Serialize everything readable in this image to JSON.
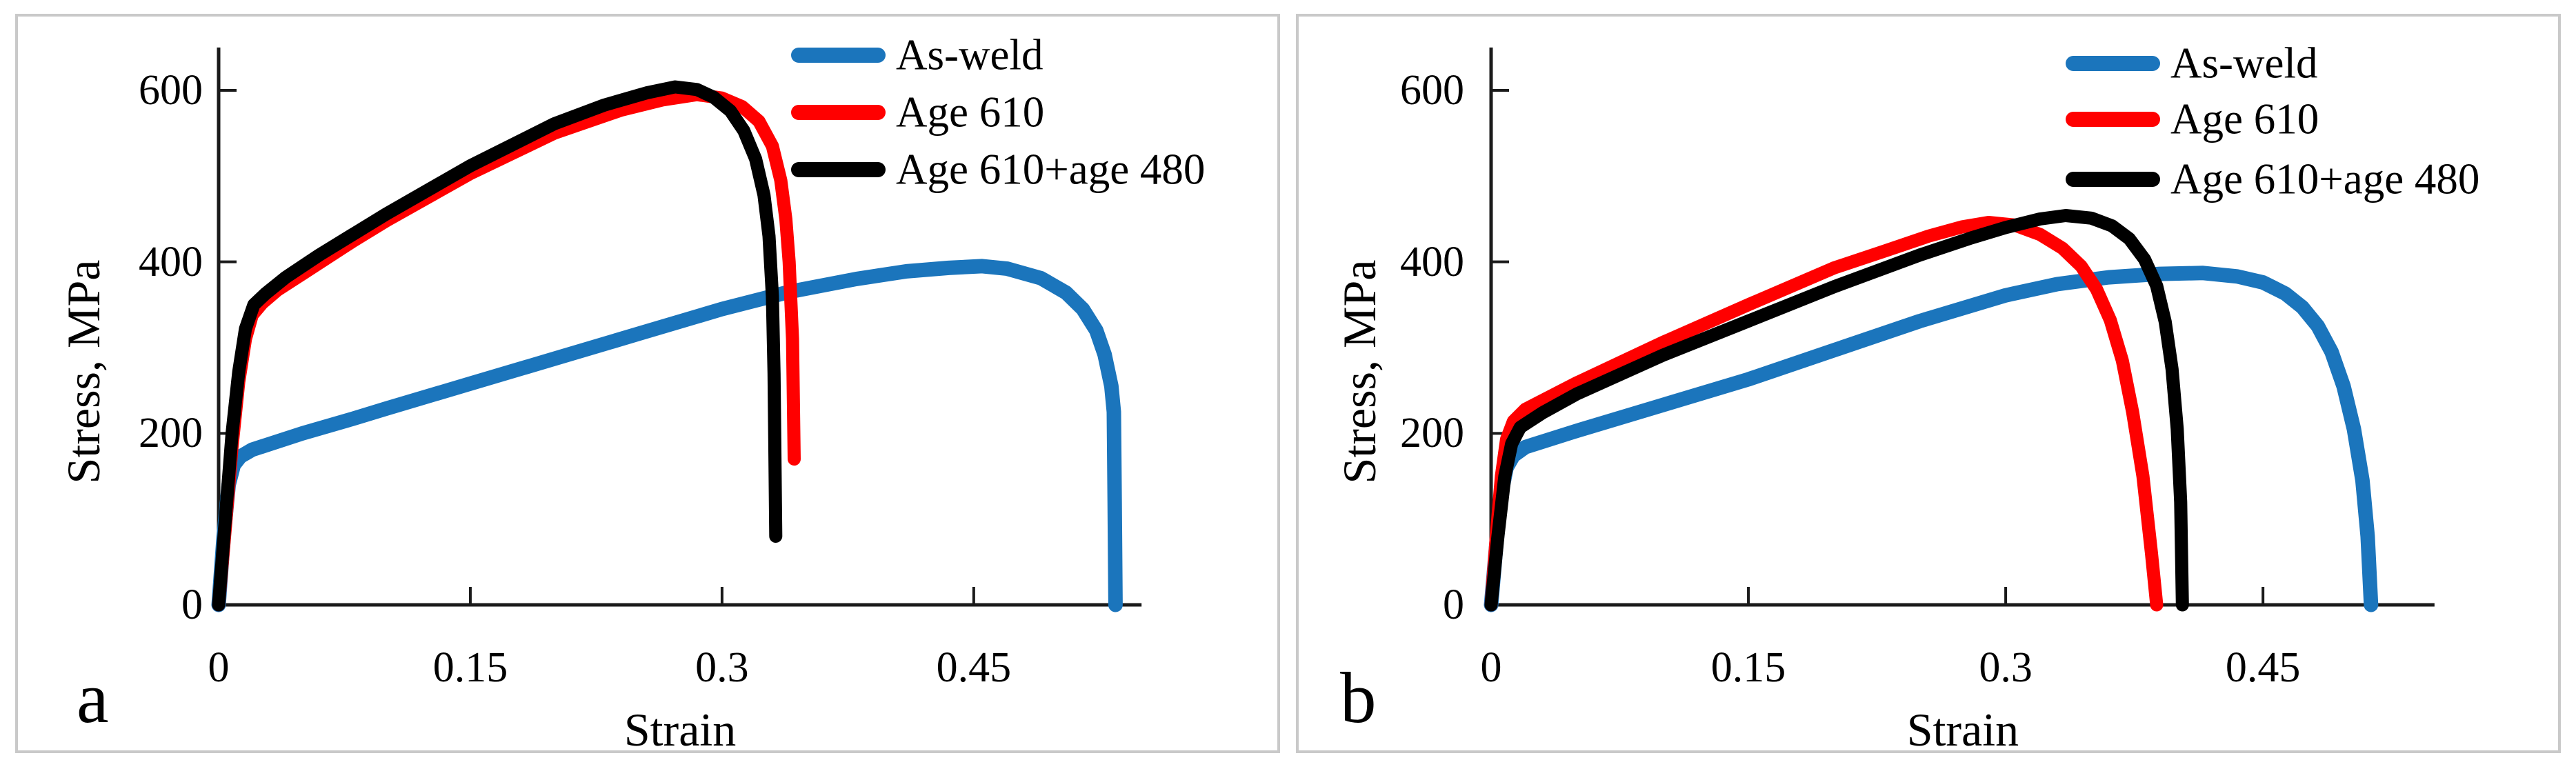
{
  "page": {
    "background": "#ffffff",
    "panel_border_color": "#c9c9c9",
    "axis_color": "#1a1a1a",
    "text_color": "#000000"
  },
  "chart_data": [
    {
      "type": "line",
      "panel_label": "a",
      "title": "",
      "xlabel": "Strain",
      "ylabel": "Stress, MPa",
      "xlim": [
        0,
        0.55
      ],
      "ylim": [
        0,
        650
      ],
      "x_ticks": [
        0,
        0.15,
        0.3,
        0.45
      ],
      "x_tick_labels": [
        "0",
        "0.15",
        "0.3",
        "0.45"
      ],
      "y_ticks": [
        0,
        200,
        400,
        600
      ],
      "y_tick_labels": [
        "0",
        "200",
        "400",
        "600"
      ],
      "grid": false,
      "legend_position": "top-right",
      "series": [
        {
          "name": "As-weld",
          "color": "#1B75BC",
          "points": [
            [
              0,
              0
            ],
            [
              0.003,
              80
            ],
            [
              0.006,
              140
            ],
            [
              0.009,
              163
            ],
            [
              0.013,
              173
            ],
            [
              0.02,
              181
            ],
            [
              0.05,
              200
            ],
            [
              0.08,
              217
            ],
            [
              0.1,
              229
            ],
            [
              0.15,
              258
            ],
            [
              0.2,
              287
            ],
            [
              0.25,
              316
            ],
            [
              0.3,
              345
            ],
            [
              0.34,
              365
            ],
            [
              0.38,
              380
            ],
            [
              0.41,
              389
            ],
            [
              0.435,
              393
            ],
            [
              0.455,
              395
            ],
            [
              0.47,
              392
            ],
            [
              0.49,
              381
            ],
            [
              0.505,
              364
            ],
            [
              0.515,
              345
            ],
            [
              0.523,
              320
            ],
            [
              0.528,
              292
            ],
            [
              0.532,
              255
            ],
            [
              0.5335,
              225
            ],
            [
              0.534,
              120
            ],
            [
              0.5345,
              0
            ]
          ]
        },
        {
          "name": "Age 610",
          "color": "#FF0000",
          "points": [
            [
              0,
              0
            ],
            [
              0.004,
              90
            ],
            [
              0.008,
              185
            ],
            [
              0.012,
              260
            ],
            [
              0.016,
              310
            ],
            [
              0.02,
              338
            ],
            [
              0.026,
              352
            ],
            [
              0.035,
              367
            ],
            [
              0.05,
              386
            ],
            [
              0.08,
              424
            ],
            [
              0.1,
              448
            ],
            [
              0.15,
              503
            ],
            [
              0.2,
              550
            ],
            [
              0.24,
              577
            ],
            [
              0.265,
              589
            ],
            [
              0.285,
              595
            ],
            [
              0.3,
              591
            ],
            [
              0.312,
              581
            ],
            [
              0.322,
              564
            ],
            [
              0.33,
              535
            ],
            [
              0.335,
              495
            ],
            [
              0.338,
              450
            ],
            [
              0.34,
              400
            ],
            [
              0.342,
              310
            ],
            [
              0.3425,
              240
            ],
            [
              0.343,
              170
            ]
          ]
        },
        {
          "name": "Age 610+age 480",
          "color": "#000000",
          "points": [
            [
              0,
              0
            ],
            [
              0.004,
              100
            ],
            [
              0.008,
              200
            ],
            [
              0.012,
              272
            ],
            [
              0.016,
              322
            ],
            [
              0.021,
              350
            ],
            [
              0.028,
              363
            ],
            [
              0.04,
              382
            ],
            [
              0.06,
              408
            ],
            [
              0.08,
              432
            ],
            [
              0.1,
              456
            ],
            [
              0.15,
              512
            ],
            [
              0.2,
              561
            ],
            [
              0.23,
              583
            ],
            [
              0.255,
              597
            ],
            [
              0.272,
              604
            ],
            [
              0.285,
              601
            ],
            [
              0.295,
              592
            ],
            [
              0.305,
              576
            ],
            [
              0.313,
              553
            ],
            [
              0.32,
              520
            ],
            [
              0.325,
              478
            ],
            [
              0.328,
              430
            ],
            [
              0.33,
              360
            ],
            [
              0.331,
              270
            ],
            [
              0.3315,
              180
            ],
            [
              0.332,
              80
            ]
          ]
        }
      ]
    },
    {
      "type": "line",
      "panel_label": "b",
      "title": "",
      "xlabel": "Strain",
      "ylabel": "Stress, MPa",
      "xlim": [
        0,
        0.55
      ],
      "ylim": [
        0,
        650
      ],
      "x_ticks": [
        0,
        0.15,
        0.3,
        0.45
      ],
      "x_tick_labels": [
        "0",
        "0.15",
        "0.3",
        "0.45"
      ],
      "y_ticks": [
        0,
        200,
        400,
        600
      ],
      "y_tick_labels": [
        "0",
        "200",
        "400",
        "600"
      ],
      "grid": false,
      "legend_position": "top-right",
      "series": [
        {
          "name": "As-weld",
          "color": "#1B75BC",
          "points": [
            [
              0,
              0
            ],
            [
              0.003,
              70
            ],
            [
              0.006,
              130
            ],
            [
              0.009,
              160
            ],
            [
              0.013,
              174
            ],
            [
              0.02,
              184
            ],
            [
              0.05,
              203
            ],
            [
              0.1,
              233
            ],
            [
              0.15,
              263
            ],
            [
              0.2,
              297
            ],
            [
              0.25,
              331
            ],
            [
              0.3,
              361
            ],
            [
              0.33,
              374
            ],
            [
              0.36,
              382
            ],
            [
              0.39,
              386
            ],
            [
              0.415,
              387
            ],
            [
              0.435,
              383
            ],
            [
              0.45,
              376
            ],
            [
              0.463,
              363
            ],
            [
              0.473,
              347
            ],
            [
              0.482,
              325
            ],
            [
              0.49,
              295
            ],
            [
              0.497,
              255
            ],
            [
              0.503,
              205
            ],
            [
              0.508,
              145
            ],
            [
              0.511,
              80
            ],
            [
              0.513,
              0
            ]
          ]
        },
        {
          "name": "Age 610",
          "color": "#FF0000",
          "points": [
            [
              0,
              0
            ],
            [
              0.003,
              80
            ],
            [
              0.006,
              150
            ],
            [
              0.009,
              193
            ],
            [
              0.013,
              214
            ],
            [
              0.02,
              228
            ],
            [
              0.05,
              259
            ],
            [
              0.1,
              306
            ],
            [
              0.15,
              350
            ],
            [
              0.2,
              393
            ],
            [
              0.23,
              413
            ],
            [
              0.255,
              430
            ],
            [
              0.275,
              441
            ],
            [
              0.29,
              446
            ],
            [
              0.305,
              443
            ],
            [
              0.32,
              432
            ],
            [
              0.333,
              416
            ],
            [
              0.344,
              395
            ],
            [
              0.353,
              368
            ],
            [
              0.361,
              332
            ],
            [
              0.368,
              285
            ],
            [
              0.374,
              225
            ],
            [
              0.38,
              150
            ],
            [
              0.385,
              60
            ],
            [
              0.388,
              0
            ]
          ]
        },
        {
          "name": "Age 610+age 480",
          "color": "#000000",
          "points": [
            [
              0,
              0
            ],
            [
              0.004,
              80
            ],
            [
              0.008,
              150
            ],
            [
              0.012,
              188
            ],
            [
              0.017,
              207
            ],
            [
              0.03,
              224
            ],
            [
              0.05,
              246
            ],
            [
              0.1,
              291
            ],
            [
              0.15,
              331
            ],
            [
              0.2,
              371
            ],
            [
              0.25,
              408
            ],
            [
              0.28,
              428
            ],
            [
              0.3,
              440
            ],
            [
              0.32,
              450
            ],
            [
              0.335,
              454
            ],
            [
              0.35,
              451
            ],
            [
              0.362,
              442
            ],
            [
              0.372,
              427
            ],
            [
              0.381,
              403
            ],
            [
              0.388,
              372
            ],
            [
              0.393,
              330
            ],
            [
              0.397,
              275
            ],
            [
              0.4,
              205
            ],
            [
              0.402,
              120
            ],
            [
              0.403,
              0
            ]
          ]
        }
      ]
    }
  ]
}
